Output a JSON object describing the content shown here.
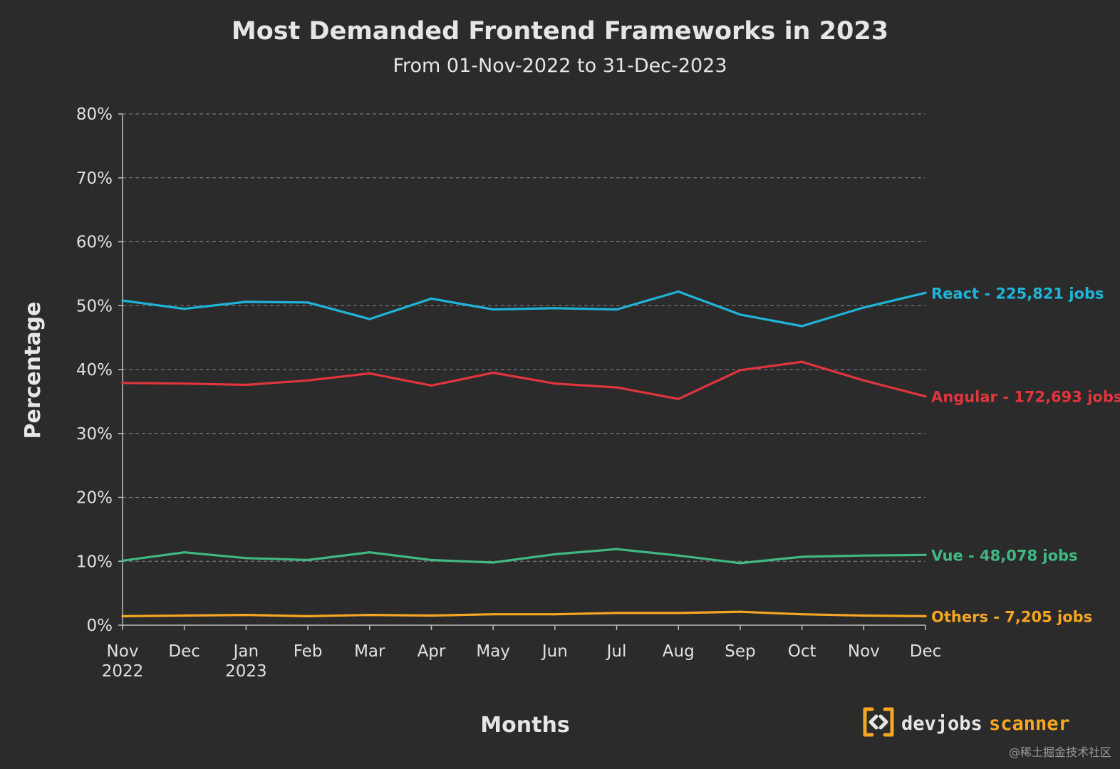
{
  "chart_data": {
    "type": "line",
    "title": "Most Demanded Frontend Frameworks in 2023",
    "subtitle": "From 01-Nov-2022 to 31-Dec-2023",
    "xlabel": "Months",
    "ylabel": "Percentage",
    "categories": [
      "Nov",
      "Dec",
      "Jan",
      "Feb",
      "Mar",
      "Apr",
      "May",
      "Jun",
      "Jul",
      "Aug",
      "Sep",
      "Oct",
      "Nov",
      "Dec"
    ],
    "category_years": [
      "2022",
      "",
      "2023",
      "",
      "",
      "",
      "",
      "",
      "",
      "",
      "",
      "",
      "",
      ""
    ],
    "y_ticks": [
      "0%",
      "10%",
      "20%",
      "30%",
      "40%",
      "50%",
      "60%",
      "70%",
      "80%"
    ],
    "ylim": [
      0,
      80
    ],
    "grid": true,
    "series": [
      {
        "name": "React",
        "label": "React - 225,821 jobs",
        "color": "#1fb4d8",
        "values": [
          50.8,
          49.5,
          50.6,
          50.5,
          47.9,
          51.1,
          49.4,
          49.6,
          49.4,
          52.2,
          48.6,
          46.8,
          49.7,
          52.0
        ]
      },
      {
        "name": "Angular",
        "label": "Angular - 172,693 jobs",
        "color": "#e0353d",
        "values": [
          37.9,
          37.8,
          37.6,
          38.3,
          39.4,
          37.5,
          39.5,
          37.8,
          37.2,
          35.4,
          39.9,
          41.2,
          38.3,
          35.8
        ]
      },
      {
        "name": "Vue",
        "label": "Vue - 48,078 jobs",
        "color": "#41b883",
        "values": [
          10.1,
          11.4,
          10.5,
          10.2,
          11.4,
          10.2,
          9.8,
          11.1,
          11.9,
          10.9,
          9.7,
          10.7,
          10.9,
          11.0
        ]
      },
      {
        "name": "Others",
        "label": "Others - 7,205 jobs",
        "color": "#f6a623",
        "values": [
          1.4,
          1.5,
          1.6,
          1.4,
          1.6,
          1.5,
          1.7,
          1.7,
          1.9,
          1.9,
          2.1,
          1.7,
          1.5,
          1.4
        ]
      }
    ]
  },
  "brand": {
    "part1": "devjobs",
    "part2": "scanner",
    "accent": "#f5a623"
  },
  "watermark": "@稀土掘金技术社区"
}
